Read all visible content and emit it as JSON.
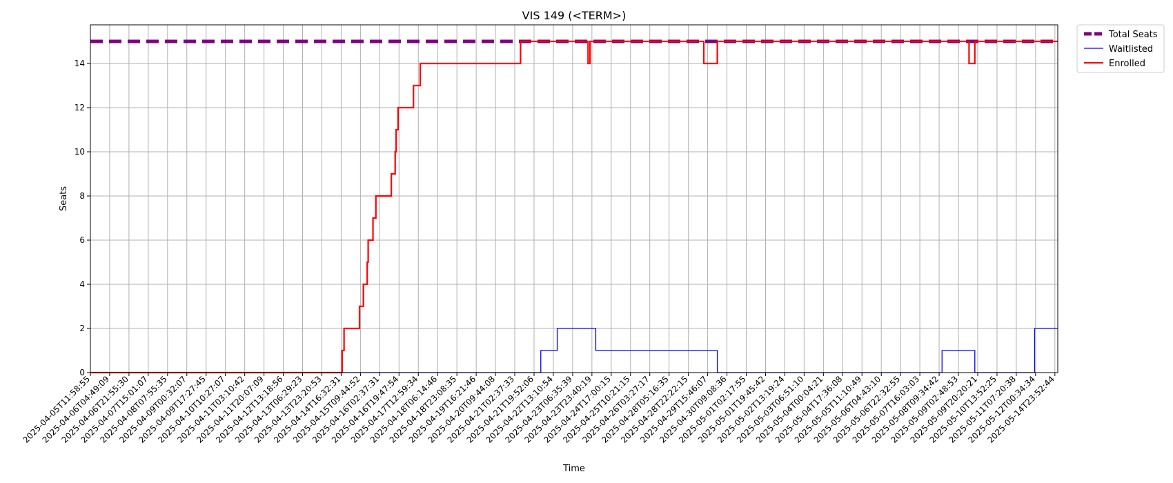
{
  "chart_data": {
    "type": "line",
    "title": "VIS 149 (<TERM>)",
    "xlabel": "Time",
    "ylabel": "Seats",
    "ylim": [
      0,
      15.75
    ],
    "yticks": [
      0,
      2,
      4,
      6,
      8,
      10,
      12,
      14
    ],
    "grid": true,
    "legend_position": "outside-top-right",
    "x_tick_labels": [
      "2025-04-05T11:58:55",
      "2025-04-06T04:49:09",
      "2025-04-06T21:55:30",
      "2025-04-07T15:01:07",
      "2025-04-08T07:55:35",
      "2025-04-09T00:32:07",
      "2025-04-09T17:27:45",
      "2025-04-10T10:27:07",
      "2025-04-11T03:10:42",
      "2025-04-11T20:07:09",
      "2025-04-12T13:18:56",
      "2025-04-13T06:29:23",
      "2025-04-13T23:20:53",
      "2025-04-14T16:32:31",
      "2025-04-15T09:44:52",
      "2025-04-16T02:37:31",
      "2025-04-16T19:47:54",
      "2025-04-17T12:59:34",
      "2025-04-18T06:14:46",
      "2025-04-18T23:08:35",
      "2025-04-19T16:21:46",
      "2025-04-20T09:44:08",
      "2025-04-21T02:37:33",
      "2025-04-21T19:52:06",
      "2025-04-22T13:10:54",
      "2025-04-23T06:35:39",
      "2025-04-23T23:40:19",
      "2025-04-24T17:00:15",
      "2025-04-25T10:21:15",
      "2025-04-26T03:27:17",
      "2025-04-28T05:16:35",
      "2025-04-28T22:22:15",
      "2025-04-29T15:46:07",
      "2025-04-30T09:08:36",
      "2025-05-01T02:17:55",
      "2025-05-01T19:45:42",
      "2025-05-02T13:19:24",
      "2025-05-03T06:51:10",
      "2025-05-04T00:04:21",
      "2025-05-04T17:36:08",
      "2025-05-05T11:10:49",
      "2025-05-06T04:43:10",
      "2025-05-06T22:32:55",
      "2025-05-07T16:03:03",
      "2025-05-08T09:34:42",
      "2025-05-09T02:48:53",
      "2025-05-09T20:20:21",
      "2025-05-10T13:52:25",
      "2025-05-11T07:20:38",
      "2025-05-12T00:34:34",
      "2025-05-14T23:52:44"
    ],
    "series": [
      {
        "name": "Total Seats",
        "color": "#800080",
        "style": "dashed",
        "points": [
          [
            0,
            15
          ],
          [
            50.15,
            15
          ]
        ]
      },
      {
        "name": "Waitlisted",
        "color": "#0000ff",
        "style": "steps",
        "points": [
          [
            0,
            0
          ],
          [
            23.35,
            0
          ],
          [
            23.35,
            1
          ],
          [
            24.2,
            1
          ],
          [
            24.2,
            2
          ],
          [
            26.2,
            2
          ],
          [
            26.2,
            1
          ],
          [
            32.5,
            1
          ],
          [
            32.5,
            0
          ],
          [
            44.15,
            0
          ],
          [
            44.15,
            1
          ],
          [
            45.85,
            1
          ],
          [
            45.85,
            0
          ],
          [
            48.95,
            0
          ],
          [
            48.95,
            2
          ],
          [
            50.15,
            2
          ]
        ]
      },
      {
        "name": "Enrolled",
        "color": "#ff0000",
        "style": "steps",
        "points": [
          [
            0,
            0
          ],
          [
            13.05,
            0
          ],
          [
            13.05,
            1
          ],
          [
            13.15,
            1
          ],
          [
            13.15,
            2
          ],
          [
            13.95,
            2
          ],
          [
            13.95,
            3
          ],
          [
            14.15,
            3
          ],
          [
            14.15,
            4
          ],
          [
            14.35,
            4
          ],
          [
            14.35,
            5
          ],
          [
            14.4,
            5
          ],
          [
            14.4,
            6
          ],
          [
            14.65,
            6
          ],
          [
            14.65,
            7
          ],
          [
            14.8,
            7
          ],
          [
            14.8,
            8
          ],
          [
            15.6,
            8
          ],
          [
            15.6,
            9
          ],
          [
            15.8,
            9
          ],
          [
            15.8,
            10
          ],
          [
            15.85,
            10
          ],
          [
            15.85,
            11
          ],
          [
            15.95,
            11
          ],
          [
            15.95,
            12
          ],
          [
            16.75,
            12
          ],
          [
            16.75,
            13
          ],
          [
            17.1,
            13
          ],
          [
            17.1,
            14
          ],
          [
            22.3,
            14
          ],
          [
            22.3,
            15
          ],
          [
            25.8,
            15
          ],
          [
            25.8,
            14
          ],
          [
            25.9,
            14
          ],
          [
            25.9,
            15
          ],
          [
            31.8,
            15
          ],
          [
            31.8,
            14
          ],
          [
            32.5,
            14
          ],
          [
            32.5,
            15
          ],
          [
            45.55,
            15
          ],
          [
            45.55,
            14
          ],
          [
            45.85,
            14
          ],
          [
            45.85,
            15
          ],
          [
            50.15,
            15
          ]
        ]
      }
    ]
  }
}
